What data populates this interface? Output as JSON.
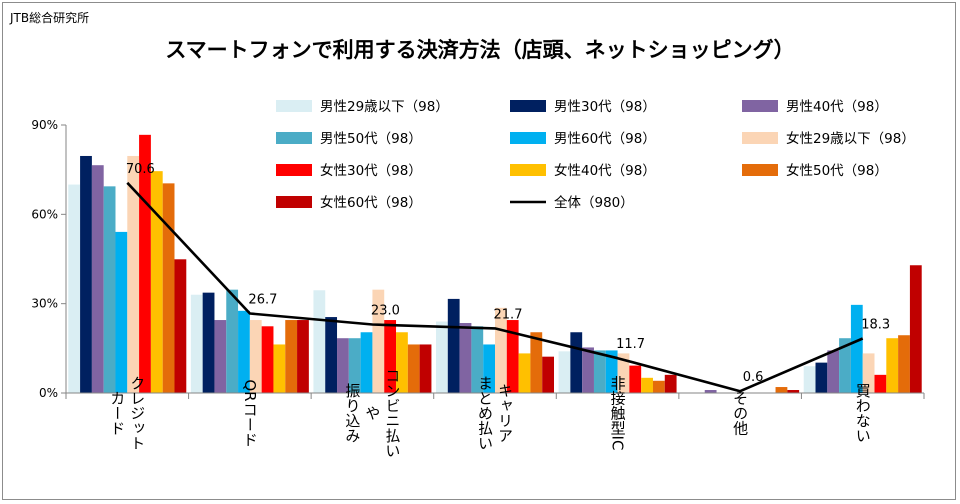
{
  "source": "JTB総合研究所",
  "chart_data": {
    "type": "bar",
    "title": "スマートフォンで利用する決済方法（店頭、ネットショッピング）",
    "xlabel": "",
    "ylabel": "",
    "ylim": [
      0,
      90
    ],
    "yticks": [
      0,
      30,
      60,
      90
    ],
    "ytick_labels": [
      "0%",
      "30%",
      "60%",
      "90%"
    ],
    "grid": false,
    "legend_position": "top",
    "categories": [
      [
        "クレジット",
        "カード"
      ],
      [
        "QRコード"
      ],
      [
        "コンビニ払い",
        "や",
        "振り込み"
      ],
      [
        "キャリア",
        "まとめ払い"
      ],
      [
        "非接触型IC"
      ],
      [
        "その他"
      ],
      [
        "買わない"
      ]
    ],
    "series": [
      {
        "name": "男性29歳以下（98）",
        "color": "#daeef3",
        "values": [
          70,
          33,
          34.5,
          24,
          14,
          0,
          9
        ]
      },
      {
        "name": "男性30代（98）",
        "color": "#002060",
        "values": [
          79.6,
          33.7,
          25.5,
          31.6,
          20.4,
          0,
          10.2
        ]
      },
      {
        "name": "男性40代（98）",
        "color": "#8064a2",
        "values": [
          76.5,
          24.5,
          18.4,
          23.5,
          15.3,
          1,
          14.3
        ]
      },
      {
        "name": "男性50代（98）",
        "color": "#4bacc6",
        "values": [
          69.4,
          34.7,
          18.4,
          22.4,
          14.3,
          0,
          18.4
        ]
      },
      {
        "name": "男性60代（98）",
        "color": "#00b0f0",
        "values": [
          54.1,
          27.6,
          20.4,
          16.3,
          14.3,
          0,
          29.6
        ]
      },
      {
        "name": "女性29歳以下（98）",
        "color": "#fbd5b5",
        "values": [
          79.6,
          24.5,
          34.7,
          28.6,
          13.3,
          0,
          13.3
        ]
      },
      {
        "name": "女性30代（98）",
        "color": "#ff0000",
        "values": [
          86.7,
          22.4,
          24.5,
          24.5,
          9.2,
          0,
          6.1
        ]
      },
      {
        "name": "女性40代（98）",
        "color": "#ffc000",
        "values": [
          74.5,
          16.3,
          20.4,
          13.3,
          5.1,
          0,
          18.4
        ]
      },
      {
        "name": "女性50代（98）",
        "color": "#e46c0a",
        "values": [
          70.4,
          24.5,
          16.3,
          20.4,
          4.1,
          2,
          19.4
        ]
      },
      {
        "name": "女性60代（98）",
        "color": "#c00000",
        "values": [
          44.9,
          24.5,
          16.3,
          12.2,
          6.1,
          1,
          42.9
        ]
      }
    ],
    "line": {
      "name": "全体（980）",
      "color": "#000000",
      "values": [
        70.6,
        26.7,
        23.0,
        21.7,
        11.7,
        0.6,
        18.3
      ]
    },
    "data_labels": [
      "70.6",
      "26.7",
      "23.0",
      "21.7",
      "11.7",
      "0.6",
      "18.3"
    ]
  }
}
